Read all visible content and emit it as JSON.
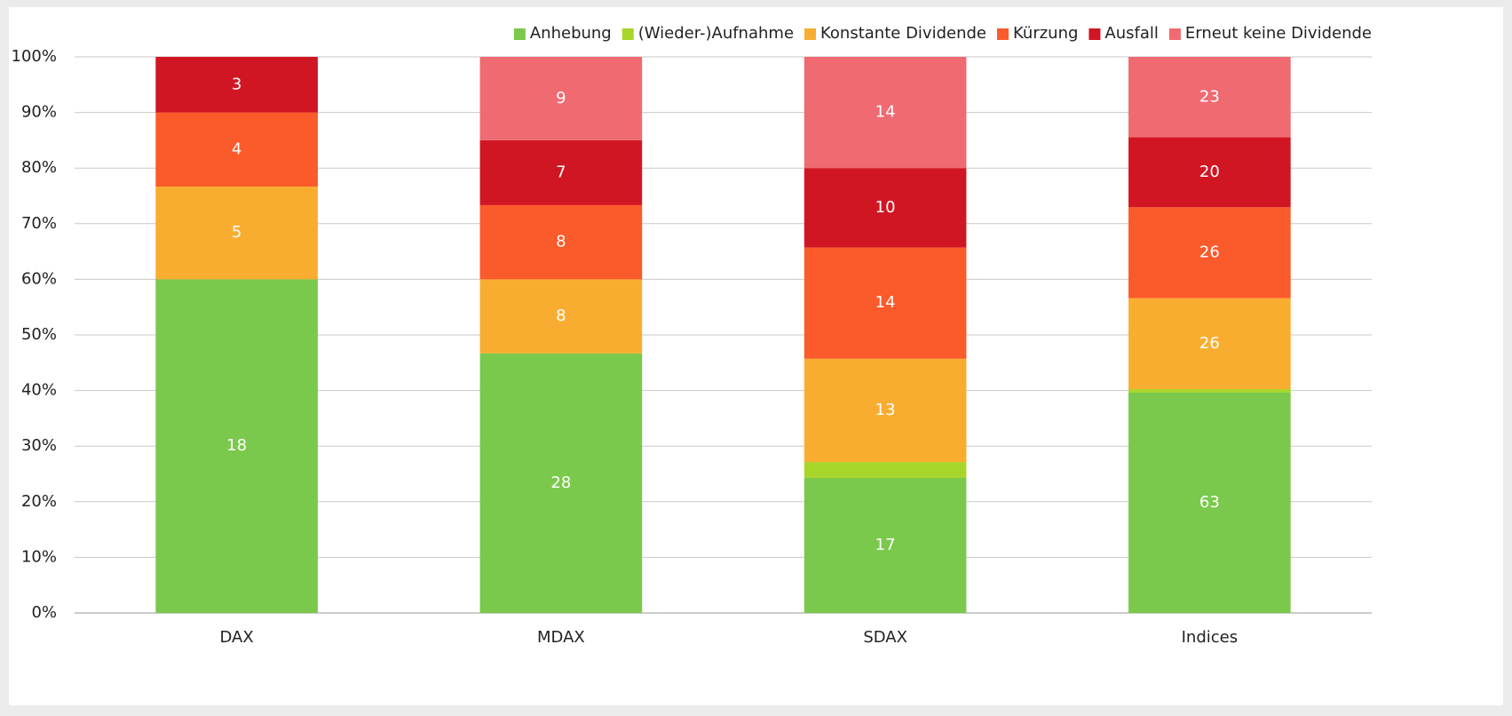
{
  "chart_data": {
    "type": "bar",
    "stacking": "percent",
    "categories": [
      "DAX",
      "MDAX",
      "SDAX",
      "Indices"
    ],
    "series": [
      {
        "name": "Anhebung",
        "color": "#7ac94c",
        "values": [
          18,
          28,
          17,
          63
        ]
      },
      {
        "name": "(Wieder-)Aufnahme",
        "color": "#a8d52a",
        "values": [
          0,
          0,
          2,
          1
        ]
      },
      {
        "name": "Konstante Dividende",
        "color": "#f9ad30",
        "values": [
          5,
          8,
          13,
          26
        ]
      },
      {
        "name": "Kürzung",
        "color": "#fb5a2a",
        "values": [
          4,
          8,
          14,
          26
        ]
      },
      {
        "name": "Ausfall",
        "color": "#d11623",
        "values": [
          3,
          7,
          10,
          20
        ]
      },
      {
        "name": "Erneut keine Dividende",
        "color": "#f06a72",
        "values": [
          0,
          9,
          14,
          23
        ]
      }
    ],
    "ylim": [
      0,
      100
    ],
    "yticks": [
      {
        "value": 0,
        "label": "0%"
      },
      {
        "value": 10,
        "label": "10%"
      },
      {
        "value": 20,
        "label": "20%"
      },
      {
        "value": 30,
        "label": "30%"
      },
      {
        "value": 40,
        "label": "40%"
      },
      {
        "value": 50,
        "label": "50%"
      },
      {
        "value": 60,
        "label": "60%"
      },
      {
        "value": 70,
        "label": "70%"
      },
      {
        "value": 80,
        "label": "80%"
      },
      {
        "value": 90,
        "label": "90%"
      },
      {
        "value": 100,
        "label": "100%"
      }
    ],
    "grid": true,
    "legend": "top-right"
  }
}
